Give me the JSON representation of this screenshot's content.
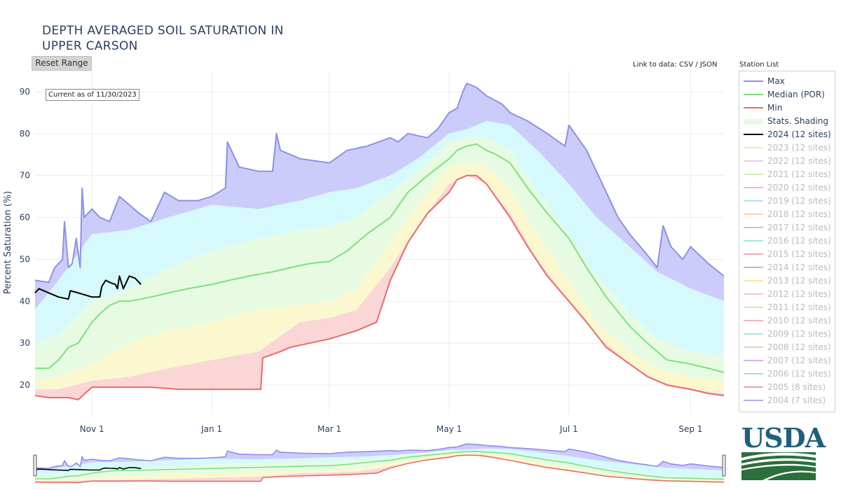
{
  "title_line1": "DEPTH AVERAGED SOIL SATURATION IN",
  "title_line2": "UPPER CARSON",
  "reset_range_label": "Reset Range",
  "data_link": {
    "prefix": "Link to data: ",
    "csv": "CSV",
    "separator": " / ",
    "json": "JSON"
  },
  "station_list_label": "Station List",
  "current_as_of": "Current as of 11/30/2023",
  "logo_text": "USDA",
  "colors": {
    "max": "#8f8fe8",
    "median": "#7ce27c",
    "min": "#e86b6b",
    "current": "#000000",
    "band_top": "#ccccfa",
    "band_upper": "#d6fafc",
    "band_mid": "#e7fbe3",
    "band_lower": "#fbf8cf",
    "band_bottom": "#fbd6d6",
    "usda_blue": "#1f5f7c",
    "usda_green": "#2b6f3c"
  },
  "legend": [
    {
      "label": "Max",
      "type": "line",
      "color": "#8f8fe8",
      "on": true
    },
    {
      "label": "Median (POR)",
      "type": "line",
      "color": "#7ce27c",
      "on": true
    },
    {
      "label": "Min",
      "type": "line",
      "color": "#e86b6b",
      "on": true
    },
    {
      "label": "Stats. Shading",
      "type": "box",
      "color": "#e7fbe3",
      "on": true
    },
    {
      "label": "2024 (12 sites)",
      "type": "line",
      "color": "#000000",
      "on": true
    },
    {
      "label": "2023 (12 sites)",
      "type": "line",
      "color": "#f8e9a6",
      "on": false
    },
    {
      "label": "2022 (12 sites)",
      "type": "line",
      "color": "#f4c6ec",
      "on": false
    },
    {
      "label": "2021 (12 sites)",
      "type": "line",
      "color": "#d6efb4",
      "on": false
    },
    {
      "label": "2020 (12 sites)",
      "type": "line",
      "color": "#f3b9cb",
      "on": false
    },
    {
      "label": "2019 (12 sites)",
      "type": "line",
      "color": "#a9e8ef",
      "on": false
    },
    {
      "label": "2018 (12 sites)",
      "type": "line",
      "color": "#f6cfae",
      "on": false
    },
    {
      "label": "2017 (12 sites)",
      "type": "line",
      "color": "#d8b8f0",
      "on": false
    },
    {
      "label": "2016 (12 sites)",
      "type": "line",
      "color": "#a6e6cf",
      "on": false
    },
    {
      "label": "2015 (12 sites)",
      "type": "line",
      "color": "#f2a9ad",
      "on": false
    },
    {
      "label": "2014 (12 sites)",
      "type": "line",
      "color": "#b8b6ec",
      "on": false
    },
    {
      "label": "2013 (12 sites)",
      "type": "line",
      "color": "#f7e6a0",
      "on": false
    },
    {
      "label": "2012 (12 sites)",
      "type": "line",
      "color": "#f3c3ea",
      "on": false
    },
    {
      "label": "2011 (12 sites)",
      "type": "line",
      "color": "#d2ecb0",
      "on": false
    },
    {
      "label": "2010 (12 sites)",
      "type": "line",
      "color": "#f3b6c8",
      "on": false
    },
    {
      "label": "2009 (12 sites)",
      "type": "line",
      "color": "#a6e6ee",
      "on": false
    },
    {
      "label": "2008 (12 sites)",
      "type": "line",
      "color": "#f6cca8",
      "on": false
    },
    {
      "label": "2007 (12 sites)",
      "type": "line",
      "color": "#d4b4ef",
      "on": false
    },
    {
      "label": "2006 (12 sites)",
      "type": "line",
      "color": "#a2e4cc",
      "on": false
    },
    {
      "label": "2005 (8 sites)",
      "type": "line",
      "color": "#f0a2a6",
      "on": false
    },
    {
      "label": "2004 (7 sites)",
      "type": "line",
      "color": "#b2b0ea",
      "on": false
    }
  ],
  "chart_data": {
    "type": "line",
    "title": "DEPTH AVERAGED SOIL SATURATION IN UPPER CARSON",
    "xlabel": "",
    "ylabel": "Percent Saturation (%)",
    "ylim": [
      13,
      95
    ],
    "yticks": [
      20,
      30,
      40,
      50,
      60,
      70,
      80,
      90
    ],
    "xlim": [
      "2023-10-03",
      "2024-09-18"
    ],
    "xticks": [
      {
        "label": "Nov 1",
        "date": "2023-11-01"
      },
      {
        "label": "Jan 1",
        "date": "2024-01-01"
      },
      {
        "label": "Mar 1",
        "date": "2024-03-01"
      },
      {
        "label": "May 1",
        "date": "2024-05-01"
      },
      {
        "label": "Jul 1",
        "date": "2024-07-01"
      },
      {
        "label": "Sep 1",
        "date": "2024-09-01"
      }
    ],
    "grid": true,
    "legend_position": "right",
    "stats_bands": {
      "x": [
        "2023-10-03",
        "2023-10-15",
        "2023-11-01",
        "2023-11-20",
        "2023-12-10",
        "2024-01-01",
        "2024-01-25",
        "2024-02-15",
        "2024-03-01",
        "2024-03-15",
        "2024-04-01",
        "2024-04-15",
        "2024-05-01",
        "2024-05-10",
        "2024-05-20",
        "2024-06-01",
        "2024-06-15",
        "2024-07-01",
        "2024-07-15",
        "2024-08-01",
        "2024-08-15",
        "2024-09-01",
        "2024-09-18"
      ],
      "upper": [
        38,
        45,
        56,
        57,
        60,
        63,
        62,
        64,
        66,
        67,
        70,
        74,
        80,
        81,
        83,
        82,
        76,
        68,
        60,
        53,
        47,
        43,
        40
      ],
      "upper_mid": [
        30,
        32,
        40,
        43,
        48,
        52,
        55,
        57,
        58,
        60,
        66,
        71,
        78,
        79,
        79,
        76,
        66,
        56,
        46,
        37,
        31,
        28,
        27
      ],
      "lower_mid": [
        21,
        22,
        25,
        30,
        33,
        35,
        38,
        39,
        40,
        43,
        54,
        63,
        72,
        73,
        72,
        67,
        56,
        45,
        35,
        28,
        24,
        22,
        21
      ],
      "lower": [
        19,
        19,
        21,
        22,
        24,
        26,
        28,
        35,
        36,
        38,
        48,
        58,
        68,
        69,
        68,
        61,
        50,
        39,
        29,
        23,
        20,
        19,
        18
      ]
    },
    "series": [
      {
        "name": "Max",
        "x": [
          "2023-10-03",
          "2023-10-10",
          "2023-10-13",
          "2023-10-17",
          "2023-10-18",
          "2023-10-20",
          "2023-10-22",
          "2023-10-24",
          "2023-10-26",
          "2023-10-27",
          "2023-10-28",
          "2023-11-01",
          "2023-11-05",
          "2023-11-10",
          "2023-11-15",
          "2023-11-20",
          "2023-11-25",
          "2023-12-01",
          "2023-12-08",
          "2023-12-15",
          "2023-12-20",
          "2023-12-25",
          "2024-01-01",
          "2024-01-08",
          "2024-01-09",
          "2024-01-15",
          "2024-01-25",
          "2024-02-01",
          "2024-02-03",
          "2024-02-05",
          "2024-02-15",
          "2024-03-01",
          "2024-03-10",
          "2024-03-20",
          "2024-04-01",
          "2024-04-05",
          "2024-04-10",
          "2024-04-20",
          "2024-04-25",
          "2024-05-01",
          "2024-05-05",
          "2024-05-08",
          "2024-05-10",
          "2024-05-15",
          "2024-05-20",
          "2024-05-28",
          "2024-06-01",
          "2024-06-10",
          "2024-06-20",
          "2024-06-29",
          "2024-07-01",
          "2024-07-10",
          "2024-07-20",
          "2024-07-26",
          "2024-08-01",
          "2024-08-10",
          "2024-08-15",
          "2024-08-18",
          "2024-08-22",
          "2024-08-28",
          "2024-09-01",
          "2024-09-10",
          "2024-09-18"
        ],
        "values": [
          45,
          44.5,
          48,
          50,
          59,
          48,
          49,
          55,
          48,
          67,
          60,
          62,
          60,
          59,
          65,
          63,
          61,
          59,
          66,
          64,
          64,
          64,
          65,
          67,
          78,
          72,
          71,
          71,
          80,
          76,
          74,
          73,
          76,
          77,
          79,
          78,
          80,
          79,
          81,
          85,
          86,
          90,
          92,
          91,
          89,
          87,
          85,
          83,
          80,
          77,
          82,
          76,
          66,
          60,
          56,
          51,
          48,
          58,
          53,
          50,
          53,
          49,
          46
        ]
      },
      {
        "name": "Median (POR)",
        "x": [
          "2023-10-03",
          "2023-10-10",
          "2023-10-15",
          "2023-10-20",
          "2023-10-25",
          "2023-11-01",
          "2023-11-05",
          "2023-11-10",
          "2023-11-15",
          "2023-11-20",
          "2023-12-01",
          "2023-12-10",
          "2023-12-20",
          "2024-01-01",
          "2024-01-10",
          "2024-01-20",
          "2024-02-01",
          "2024-02-10",
          "2024-02-20",
          "2024-03-01",
          "2024-03-10",
          "2024-03-20",
          "2024-04-01",
          "2024-04-10",
          "2024-04-20",
          "2024-05-01",
          "2024-05-05",
          "2024-05-10",
          "2024-05-15",
          "2024-05-20",
          "2024-05-25",
          "2024-06-01",
          "2024-06-10",
          "2024-06-20",
          "2024-07-01",
          "2024-07-10",
          "2024-07-20",
          "2024-08-01",
          "2024-08-10",
          "2024-08-20",
          "2024-09-01",
          "2024-09-10",
          "2024-09-18"
        ],
        "values": [
          24,
          24,
          26,
          29,
          30,
          35,
          37,
          39,
          40,
          40,
          41,
          42,
          43,
          44,
          45,
          46,
          47,
          48,
          49,
          49.5,
          52,
          56,
          60,
          66,
          70,
          74,
          76,
          77,
          77.5,
          76,
          75,
          73,
          67,
          61,
          55,
          48,
          41,
          34,
          30,
          26,
          25,
          24,
          23
        ]
      },
      {
        "name": "Min",
        "x": [
          "2023-10-03",
          "2023-10-10",
          "2023-10-20",
          "2023-10-25",
          "2023-11-01",
          "2023-11-15",
          "2023-12-01",
          "2023-12-15",
          "2024-01-01",
          "2024-01-15",
          "2024-01-26",
          "2024-01-27",
          "2024-02-05",
          "2024-02-10",
          "2024-02-20",
          "2024-03-01",
          "2024-03-15",
          "2024-03-25",
          "2024-04-01",
          "2024-04-10",
          "2024-04-20",
          "2024-05-01",
          "2024-05-05",
          "2024-05-10",
          "2024-05-15",
          "2024-05-20",
          "2024-06-01",
          "2024-06-10",
          "2024-06-20",
          "2024-07-01",
          "2024-07-10",
          "2024-07-20",
          "2024-08-01",
          "2024-08-10",
          "2024-08-20",
          "2024-09-01",
          "2024-09-10",
          "2024-09-18"
        ],
        "values": [
          17.5,
          17,
          17,
          16.5,
          19.5,
          19.5,
          19.5,
          19,
          19,
          19,
          19,
          26.5,
          28,
          29,
          30,
          31,
          33,
          35,
          45,
          54,
          61,
          66,
          69,
          70,
          70,
          68,
          60,
          53,
          46,
          40,
          35,
          29,
          25,
          22,
          20,
          19,
          18,
          17.5
        ]
      },
      {
        "name": "2024 (12 sites)",
        "x": [
          "2023-10-03",
          "2023-10-05",
          "2023-10-10",
          "2023-10-15",
          "2023-10-20",
          "2023-10-21",
          "2023-10-25",
          "2023-11-01",
          "2023-11-05",
          "2023-11-06",
          "2023-11-08",
          "2023-11-10",
          "2023-11-13",
          "2023-11-14",
          "2023-11-15",
          "2023-11-17",
          "2023-11-18",
          "2023-11-20",
          "2023-11-23",
          "2023-11-26"
        ],
        "values": [
          42,
          43,
          42,
          41,
          40.5,
          42.5,
          42,
          41,
          41,
          43.5,
          45,
          44.5,
          44,
          43,
          46,
          43,
          44,
          46,
          45.5,
          44
        ]
      }
    ]
  }
}
